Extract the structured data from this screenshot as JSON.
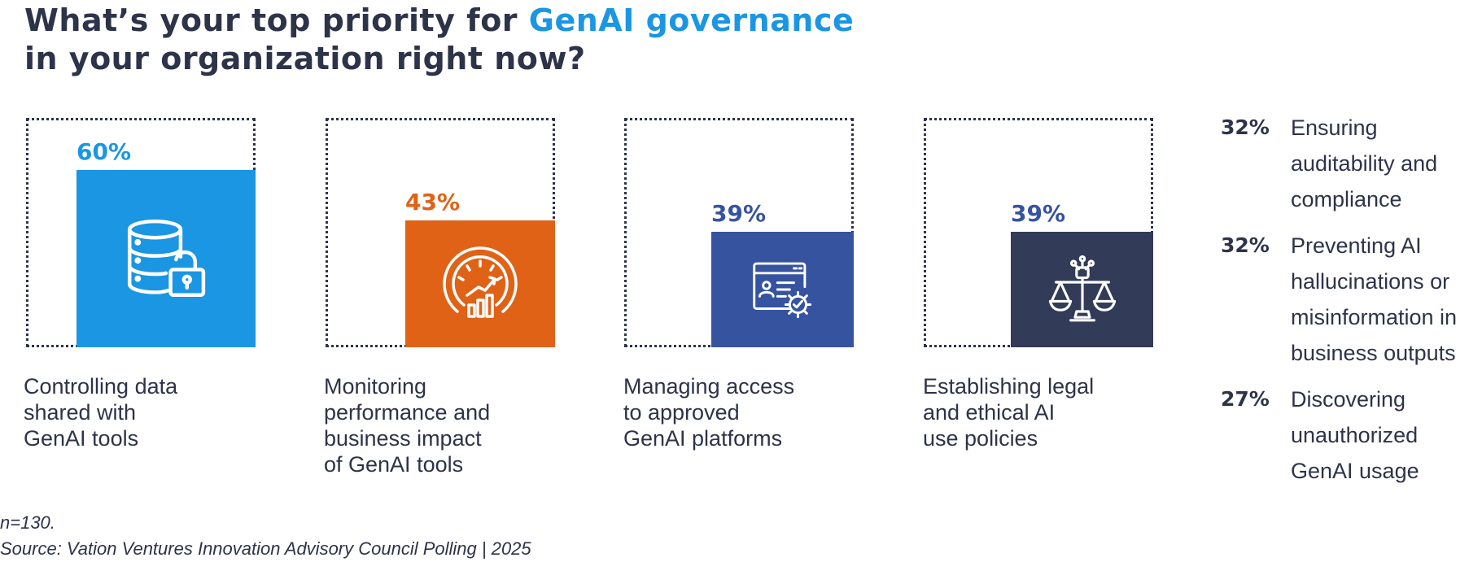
{
  "title": {
    "part1": "What’s your top priority for ",
    "highlight": "GenAI governance",
    "part2": "in your organization right now?"
  },
  "colors": {
    "dark": "#2d3349",
    "highlight": "#1a96e3",
    "bars": [
      "#1a96e3",
      "#e06216",
      "#3653a0",
      "#323b57"
    ]
  },
  "chart_data": {
    "type": "bar",
    "title": "What’s your top priority for GenAI governance in your organization right now?",
    "categories": [
      "Controlling data shared with GenAI tools",
      "Monitoring performance and business impact of GenAI tools",
      "Managing access to approved GenAI platforms",
      "Establishing legal and ethical AI use policies",
      "Ensuring auditability and compliance",
      "Preventing AI hallucinations or misinformation in business outputs",
      "Discovering unauthorized GenAI usage"
    ],
    "values": [
      60,
      43,
      39,
      39,
      32,
      32,
      27
    ],
    "unit": "%",
    "ylim": [
      0,
      100
    ]
  },
  "cards": [
    {
      "pct": "60%",
      "value": 60,
      "label_lines": [
        "Controlling data",
        "shared with",
        "GenAI tools"
      ],
      "icon": "database-unlock-icon"
    },
    {
      "pct": "43%",
      "value": 43,
      "label_lines": [
        "Monitoring",
        "performance and",
        "business impact",
        "of GenAI tools"
      ],
      "icon": "speedometer-chart-icon"
    },
    {
      "pct": "39%",
      "value": 39,
      "label_lines": [
        "Managing access",
        "to approved",
        "GenAI platforms"
      ],
      "icon": "browser-settings-icon"
    },
    {
      "pct": "39%",
      "value": 39,
      "label_lines": [
        "Establishing legal",
        "and ethical AI",
        "use policies"
      ],
      "icon": "ai-scales-icon"
    }
  ],
  "side_list": [
    {
      "pct": "32%",
      "lines": [
        "Ensuring",
        "auditability and",
        "compliance"
      ]
    },
    {
      "pct": "32%",
      "lines": [
        "Preventing AI",
        "hallucinations or",
        "misinformation in",
        "business outputs"
      ]
    },
    {
      "pct": "27%",
      "lines": [
        "Discovering",
        "unauthorized",
        "GenAI usage"
      ]
    }
  ],
  "footer": {
    "n": "n=130.",
    "source": "Source: Vation Ventures Innovation Advisory Council Polling | 2025"
  }
}
